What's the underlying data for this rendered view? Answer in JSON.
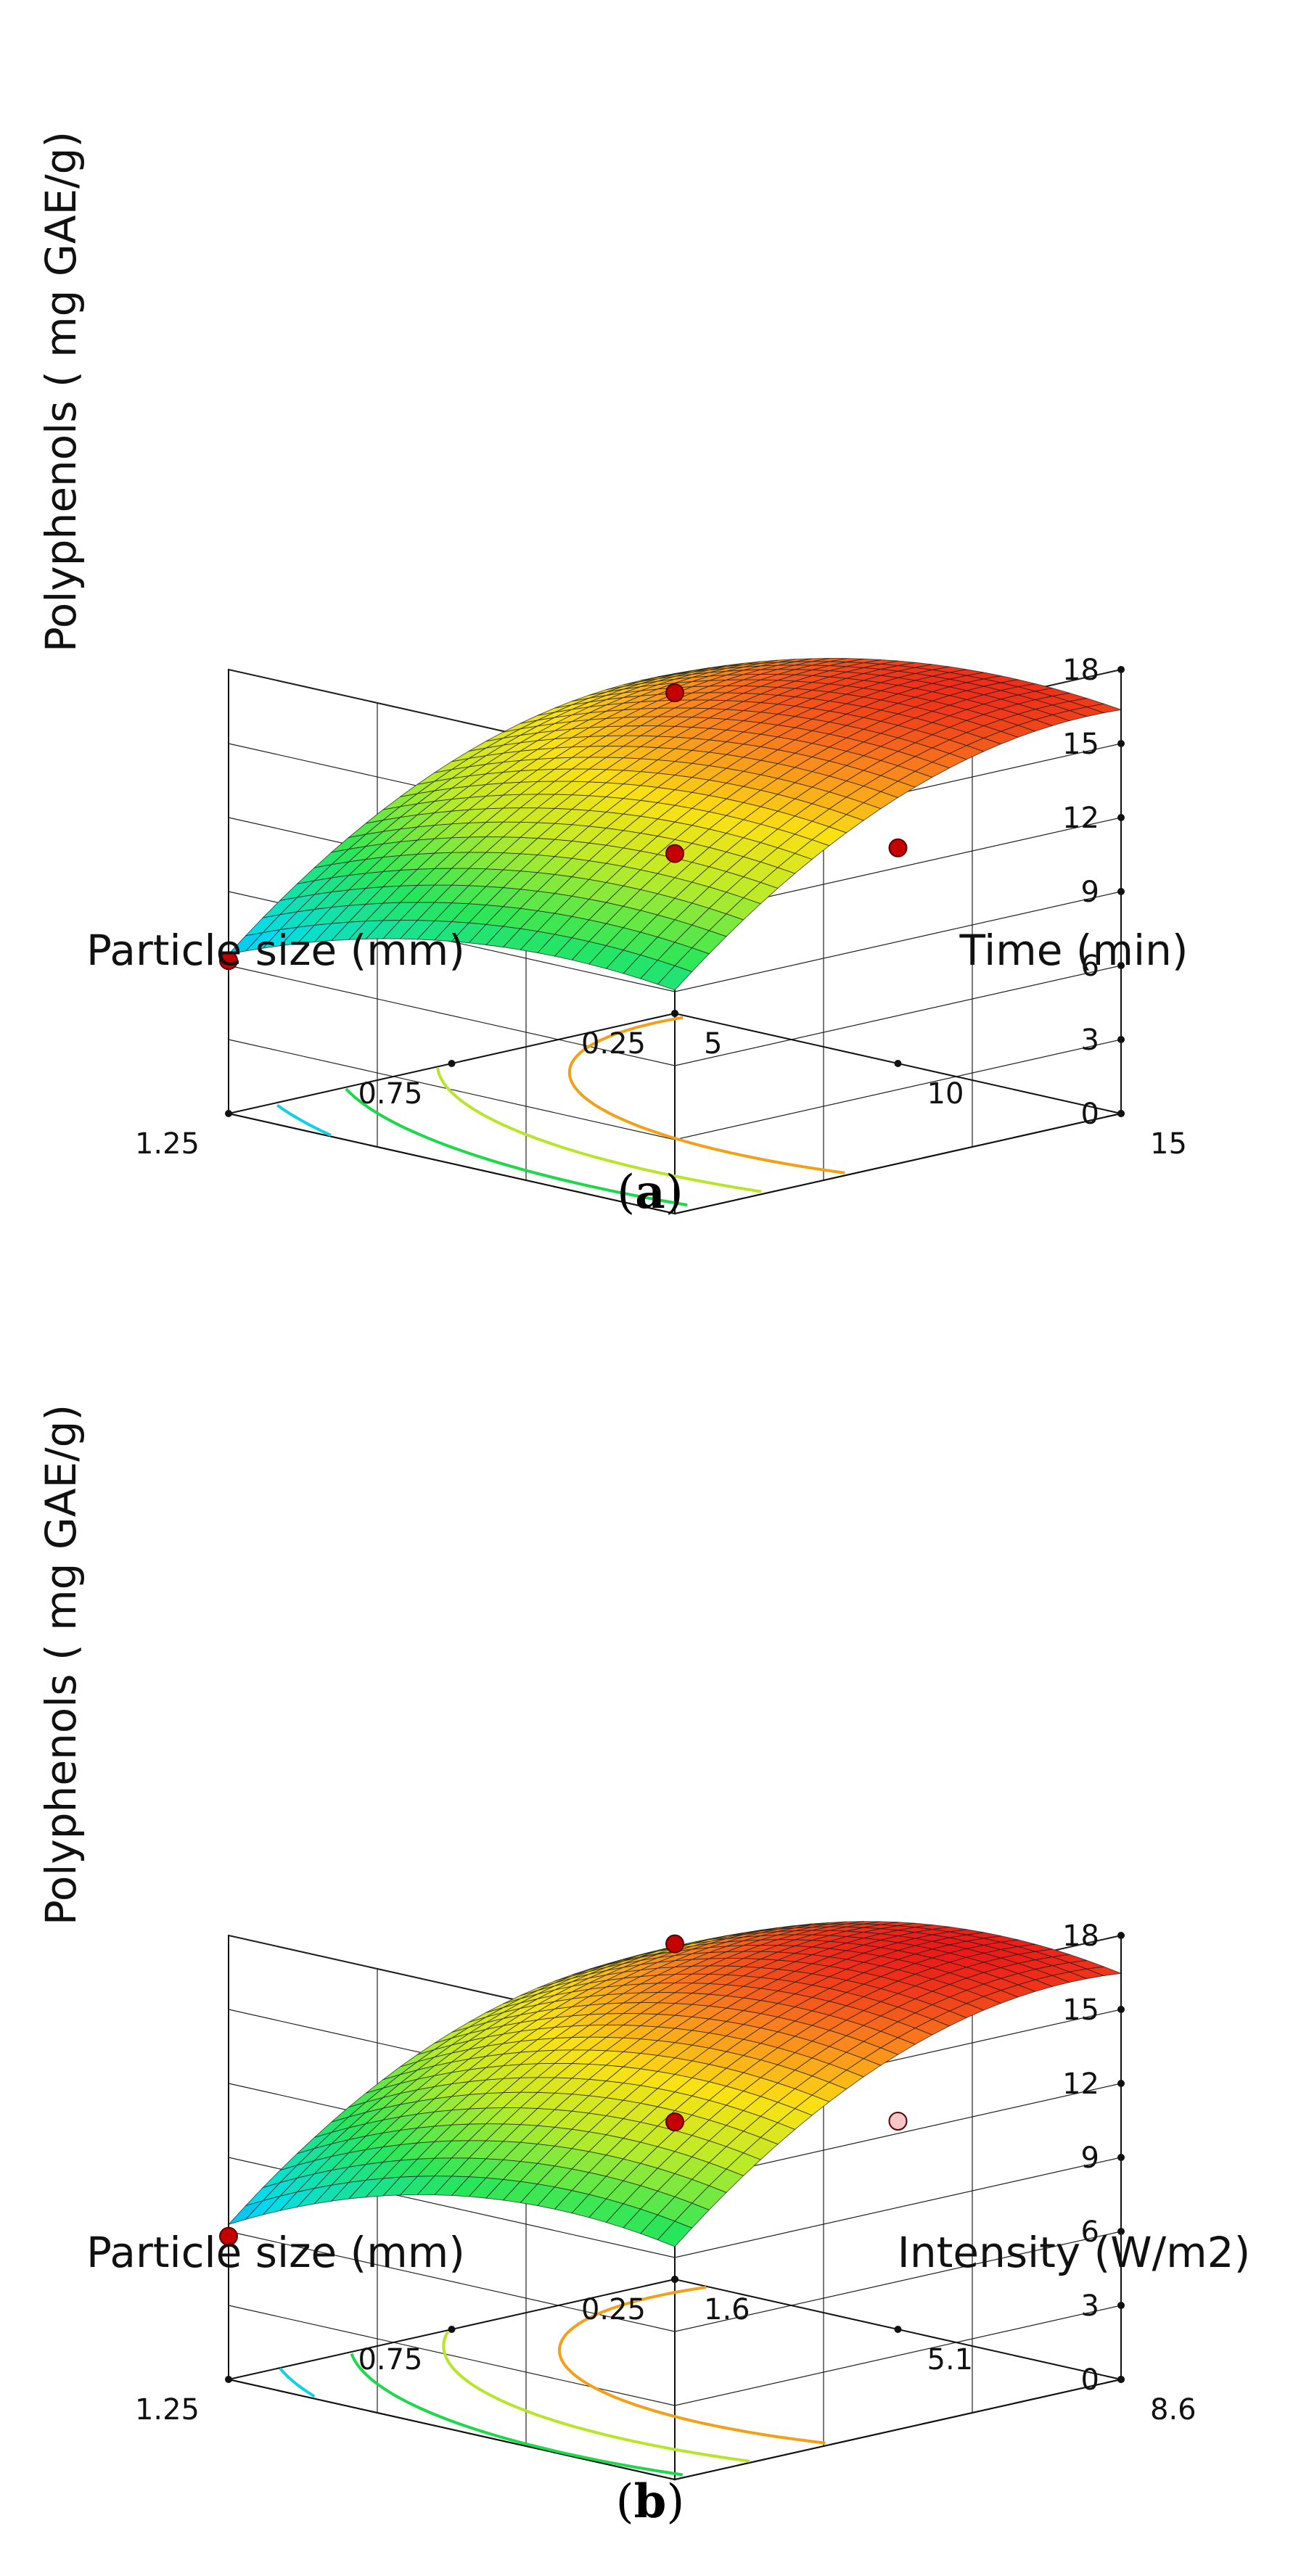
{
  "chart_data": [
    {
      "type": "surface3d",
      "caption_letter": "a",
      "zlabel": "Polyphenols ( mg GAE/g)",
      "xlabel": "Particle size (mm)",
      "ylabel": "Time (min)",
      "x_ticks": [
        "1.25",
        "0.75",
        "0.25"
      ],
      "y_ticks": [
        "5",
        "10",
        "15"
      ],
      "z_ticks": [
        "0",
        "3",
        "6",
        "9",
        "12",
        "15",
        "18"
      ],
      "xlim": [
        0.25,
        1.25
      ],
      "ylim": [
        5,
        15
      ],
      "zlim": [
        0,
        18
      ],
      "surface_model": {
        "x_opt": 0.32,
        "y_opt": 12.6,
        "z_max": 16.7,
        "ax": 8.5,
        "ay": 5.0
      },
      "contour_levels": [
        6,
        8,
        10,
        12,
        14
      ],
      "design_points": [
        {
          "x": 1.25,
          "y": 5,
          "z": 6.2,
          "color": "#c40000"
        },
        {
          "x": 0.25,
          "y": 5,
          "z": 13.0,
          "color": "#c40000"
        },
        {
          "x": 1.25,
          "y": 15,
          "z": 14.6,
          "color": "#c40000"
        },
        {
          "x": 0.75,
          "y": 15,
          "z": 12.8,
          "color": "#c40000"
        }
      ]
    },
    {
      "type": "surface3d",
      "caption_letter": "b",
      "zlabel": "Polyphenols ( mg GAE/g)",
      "xlabel": "Particle size (mm)",
      "ylabel": "Intensity (W/m2)",
      "x_ticks": [
        "1.25",
        "0.75",
        "0.25"
      ],
      "y_ticks": [
        "1.6",
        "5.1",
        "8.6"
      ],
      "z_ticks": [
        "0",
        "3",
        "6",
        "9",
        "12",
        "15",
        "18"
      ],
      "xlim": [
        0.25,
        1.25
      ],
      "ylim": [
        1.6,
        8.6
      ],
      "zlim": [
        0,
        18
      ],
      "surface_model": {
        "x_opt": 0.36,
        "y_opt": 6.8,
        "z_max": 17.0,
        "ax": 9.0,
        "ay": 6.5
      },
      "contour_levels": [
        6,
        8,
        10,
        12,
        14
      ],
      "design_points": [
        {
          "x": 1.25,
          "y": 1.6,
          "z": 5.8,
          "color": "#c40000"
        },
        {
          "x": 0.25,
          "y": 1.6,
          "z": 13.6,
          "color": "#c40000"
        },
        {
          "x": 1.25,
          "y": 8.6,
          "z": 14.5,
          "color": "#c40000"
        },
        {
          "x": 0.75,
          "y": 8.6,
          "z": 12.5,
          "color": "#f6c7c7"
        }
      ]
    }
  ]
}
